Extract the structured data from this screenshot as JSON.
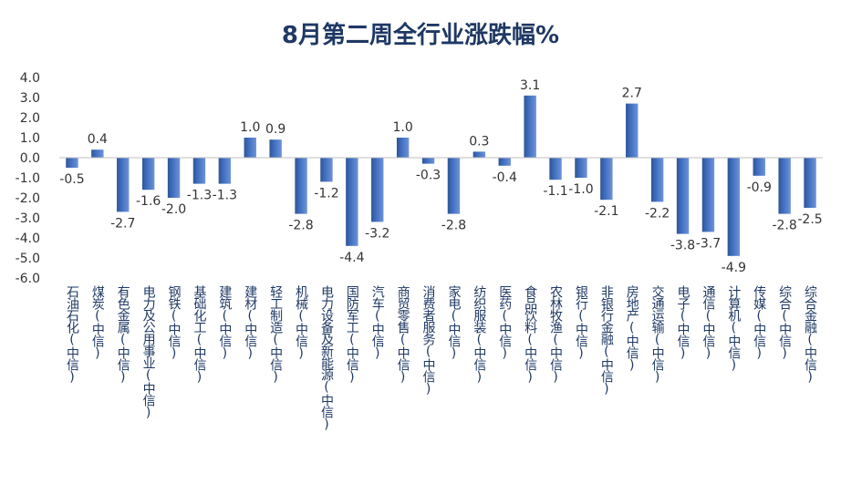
{
  "chart_data": {
    "type": "bar",
    "title": "8月第二周全行业涨跌幅%",
    "categories": [
      "石油石化(中信)",
      "煤炭(中信)",
      "有色金属(中信)",
      "电力及公用事业(中信)",
      "钢铁(中信)",
      "基础化工(中信)",
      "建筑(中信)",
      "建材(中信)",
      "轻工制造(中信)",
      "机械(中信)",
      "电力设备及新能源(中信)",
      "国防军工(中信)",
      "汽车(中信)",
      "商贸零售(中信)",
      "消费者服务(中信)",
      "家电(中信)",
      "纺织服装(中信)",
      "医药(中信)",
      "食品饮料(中信)",
      "农林牧渔(中信)",
      "银行(中信)",
      "非银行金融(中信)",
      "房地产(中信)",
      "交通运输(中信)",
      "电子(中信)",
      "通信(中信)",
      "计算机(中信)",
      "传媒(中信)",
      "综合(中信)",
      "综合金融(中信)"
    ],
    "values": [
      -0.5,
      0.4,
      -2.7,
      -1.6,
      -2.0,
      -1.3,
      -1.3,
      1.0,
      0.9,
      -2.8,
      -1.2,
      -4.4,
      -3.2,
      1.0,
      -0.3,
      -2.8,
      0.3,
      -0.4,
      3.1,
      -1.1,
      -1.0,
      -2.1,
      2.7,
      -2.2,
      -3.8,
      -3.7,
      -4.9,
      -0.9,
      -2.8,
      -2.5
    ],
    "data_labels": [
      "-0.5",
      "0.4",
      "-2.7",
      "-1.6",
      "-2.0",
      "-1.3",
      "-1.3",
      "1.0",
      "0.9",
      "-2.8",
      "-1.2",
      "-4.4",
      "-3.2",
      "1.0",
      "-0.3",
      "-2.8",
      "0.3",
      "-0.4",
      "3.1",
      "-1.1",
      "-1.0",
      "-2.1",
      "2.7",
      "-2.2",
      "-3.8",
      "-3.7",
      "-4.9",
      "-0.9",
      "-2.8",
      "-2.5"
    ],
    "yticks": [
      "4.0",
      "3.0",
      "2.0",
      "1.0",
      "0.0",
      "-1.0",
      "-2.0",
      "-3.0",
      "-4.0",
      "-5.0",
      "-6.0"
    ],
    "ylim": [
      -6,
      4
    ],
    "xlabel": "",
    "ylabel": "",
    "grid": false,
    "legend": "none",
    "colors": {
      "bar": "#4472c4",
      "bar_dark": "#2f5597",
      "title": "#1f3864",
      "axis": "#bfbfbf"
    }
  }
}
